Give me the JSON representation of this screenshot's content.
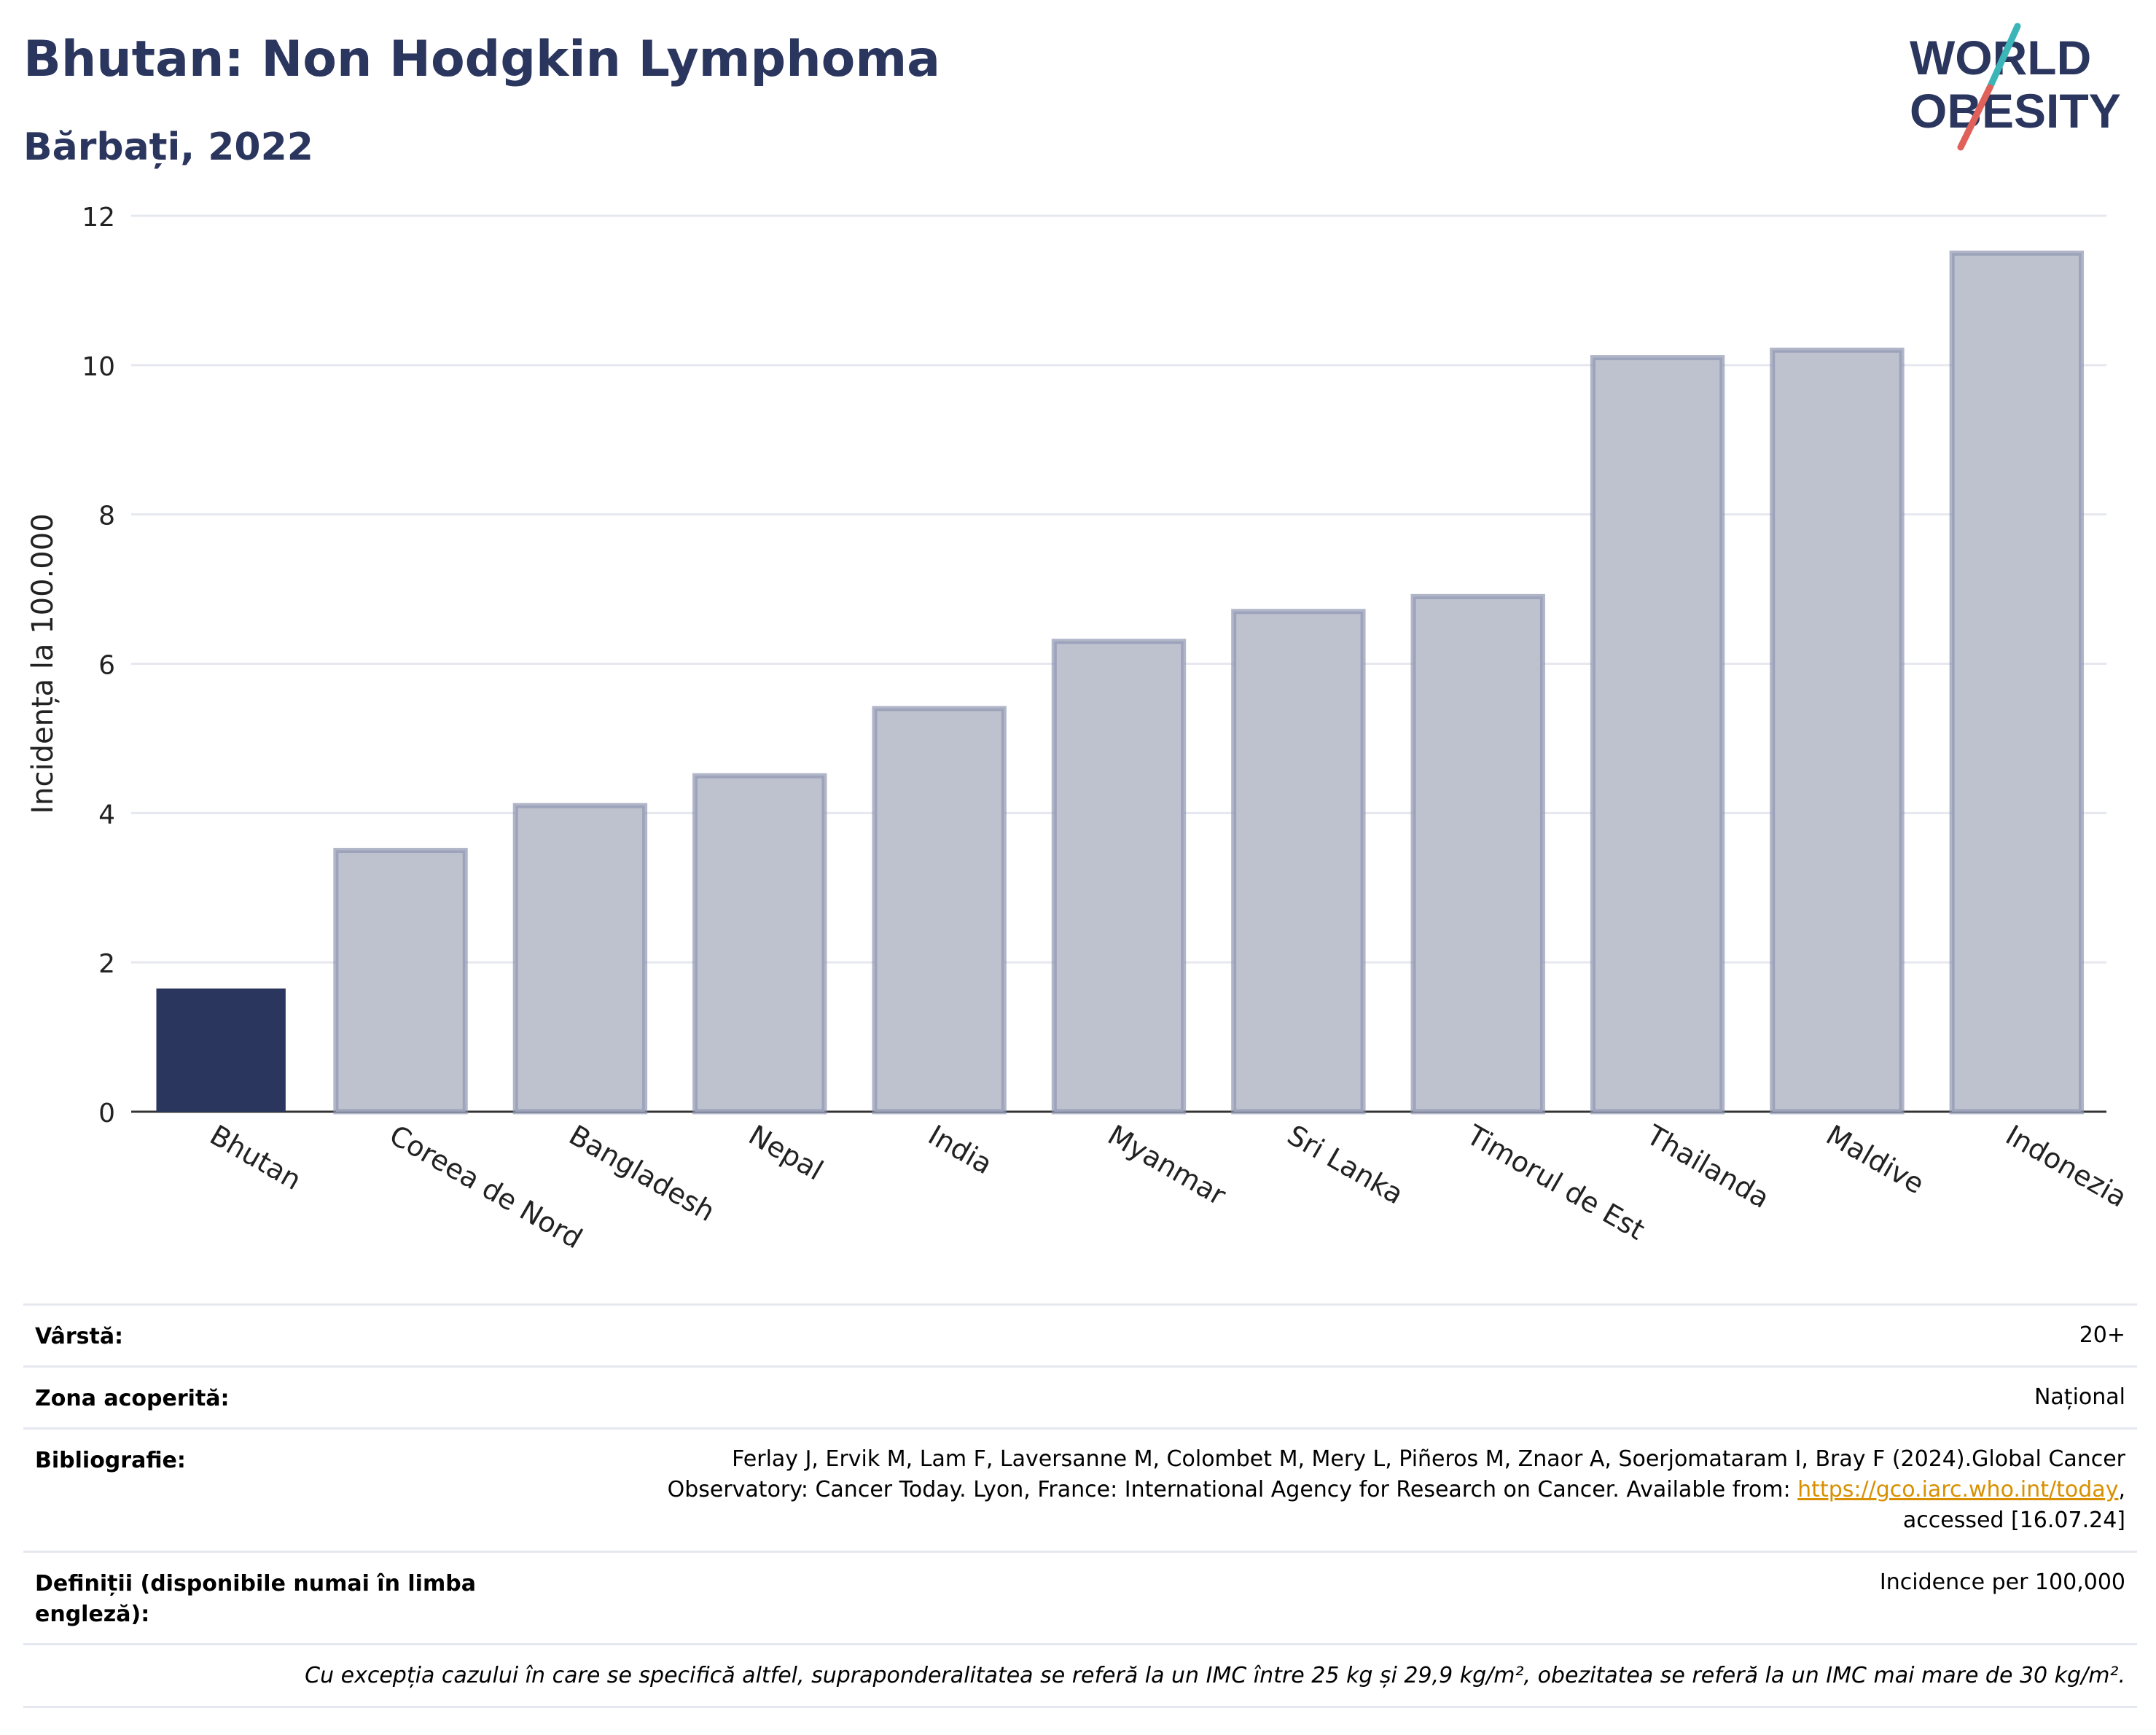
{
  "header": {
    "title": "Bhutan: Non Hodgkin Lymphoma",
    "subtitle": "Bărbați, 2022"
  },
  "logo": {
    "line1": "WORLD",
    "line2": "OBESITY"
  },
  "colors": {
    "highlight": "#2b365f",
    "bar": "#bec2cf",
    "bar_edge": "#8f96b1",
    "grid": "#e6e8ef",
    "accent_teal": "#3bb5b8",
    "accent_red": "#e0605a"
  },
  "chart_data": {
    "type": "bar",
    "categories": [
      "Bhutan",
      "Coreea de Nord",
      "Bangladesh",
      "Nepal",
      "India",
      "Myanmar",
      "Sri Lanka",
      "Timorul de Est",
      "Thailanda",
      "Maldive",
      "Indonezia"
    ],
    "values": [
      1.65,
      3.5,
      4.1,
      4.5,
      5.4,
      6.3,
      6.7,
      6.9,
      10.1,
      10.2,
      11.5
    ],
    "highlight": "Bhutan",
    "ylabel": "Incidența la 100.000",
    "ylim": [
      0,
      12
    ],
    "yticks": [
      0,
      2,
      4,
      6,
      8,
      10,
      12
    ],
    "grid": true
  },
  "info": {
    "age_label": "Vârstă:",
    "age_value": "20+",
    "area_label": "Zona acoperită:",
    "area_value": "Național",
    "biblio_label": "Bibliografie:",
    "biblio_line1": "Ferlay J, Ervik M, Lam F, Laversanne M, Colombet M, Mery L, Piñeros M, Znaor A, Soerjomataram I, Bray F (2024).Global Cancer",
    "biblio_line2a": "Observatory: Cancer Today. Lyon, France: International Agency for Research on Cancer. Available from: ",
    "biblio_link": "https://gco.iarc.who.int/today",
    "biblio_line2b": ",",
    "biblio_line3": "accessed [16.07.24]",
    "def_label": "Definiții (disponibile numai în limba engleză):",
    "def_value": "Incidence per 100,000",
    "note": "Cu excepția cazului în care se specifică altfel, supraponderalitatea se referă la un IMC între 25 kg și 29,9 kg/m², obezitatea se referă la un IMC mai mare de 30 kg/m²."
  }
}
